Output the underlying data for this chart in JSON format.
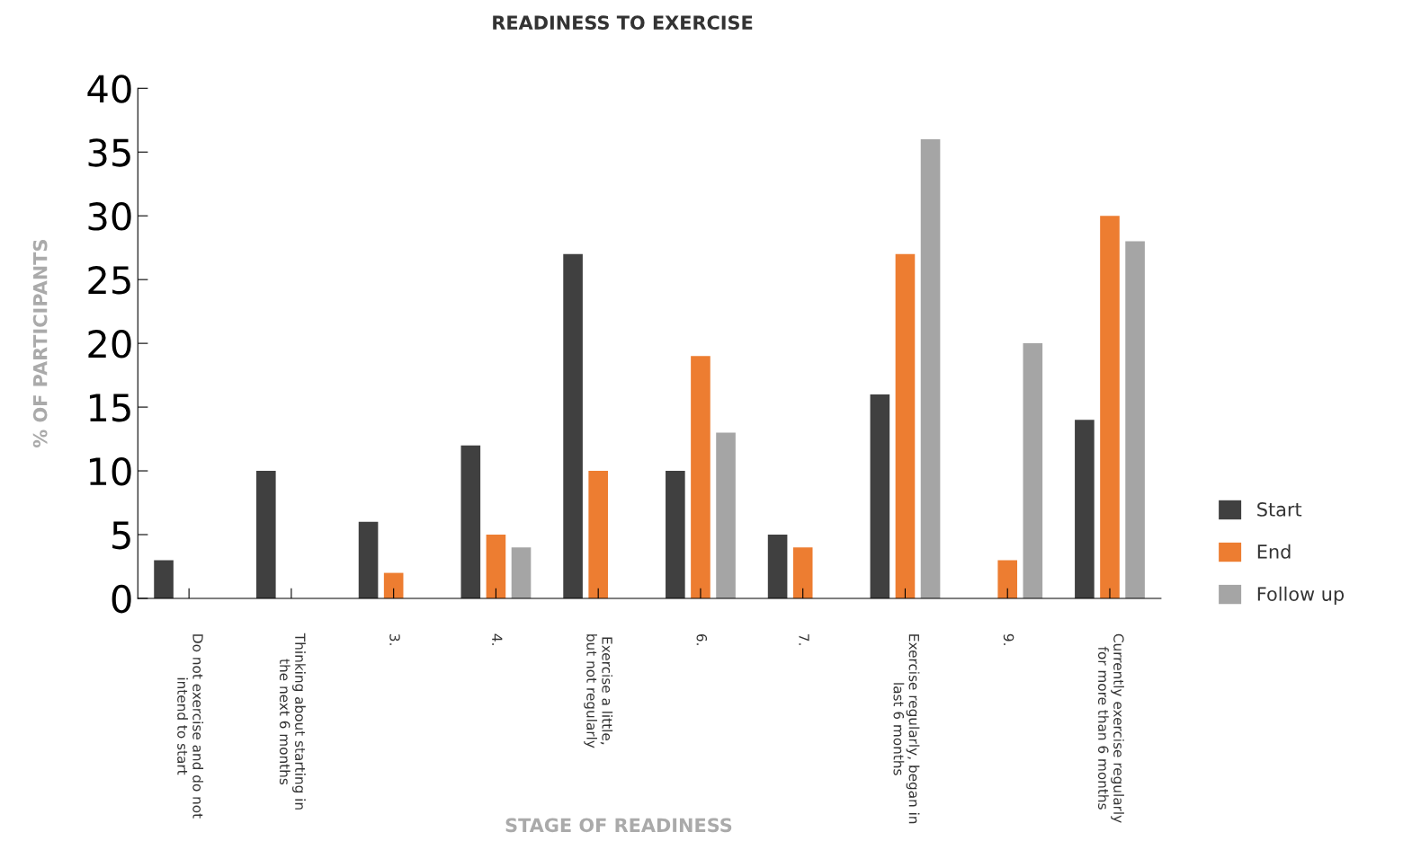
{
  "chart_data": {
    "type": "bar",
    "title": "READINESS TO EXERCISE",
    "xlabel": "STAGE OF READINESS",
    "ylabel": "% OF PARTICIPANTS",
    "categories": [
      "Do not exercise and do not\nintend to start",
      "Thinking about starting in\nthe next 6 months",
      "3.",
      "4.",
      "Exercise a little,\nbut not regularly",
      "6.",
      "7.",
      "Exercise regularly, began in\nlast 6 months",
      "9.",
      "Currently exercise regularly\nfor more than 6 months"
    ],
    "series": [
      {
        "name": "Start",
        "color": "#404040",
        "values": [
          3,
          10,
          6,
          12,
          27,
          10,
          5,
          16,
          null,
          14
        ]
      },
      {
        "name": "End",
        "color": "#ed7d31",
        "values": [
          null,
          null,
          2,
          5,
          10,
          19,
          4,
          27,
          3,
          30
        ]
      },
      {
        "name": "Follow up",
        "color": "#a5a5a5",
        "values": [
          null,
          null,
          null,
          4,
          null,
          13,
          null,
          36,
          20,
          28
        ]
      }
    ],
    "ylim": [
      0,
      40
    ],
    "yticks": [
      0,
      5,
      10,
      15,
      20,
      25,
      30,
      35,
      40
    ],
    "grid": false,
    "legend": "right"
  }
}
